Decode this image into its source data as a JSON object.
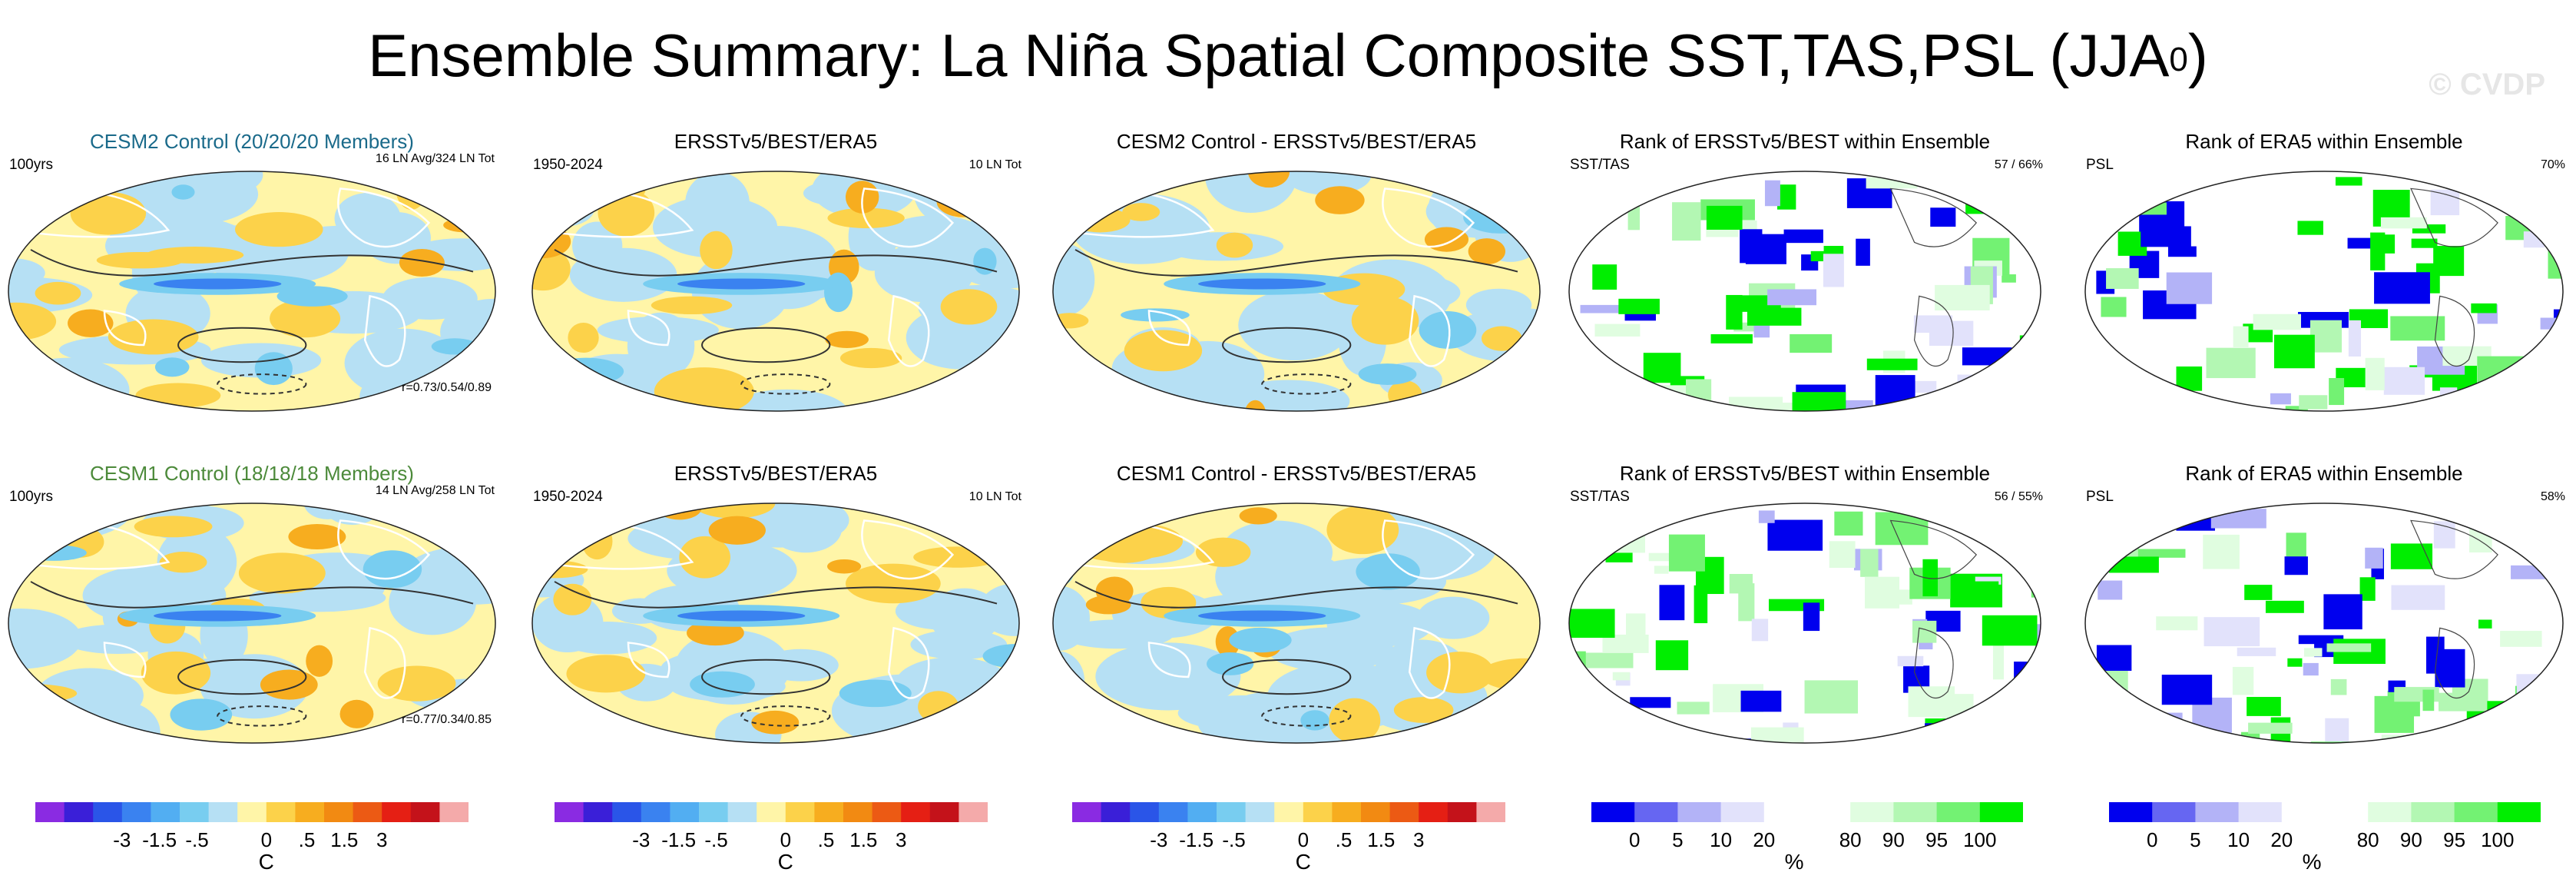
{
  "title": "Ensemble Summary: La Niña Spatial Composite SST,TAS,PSL (JJA",
  "title_sup": "0",
  "title_close": ")",
  "watermark": "© CVDP",
  "rows": [
    {
      "control": {
        "title": "CESM2 Control (20/20/20 Members)",
        "left": "100yrs",
        "right": "16 LN Avg/324 LN Tot",
        "corr": "r=0.73/0.54/0.89"
      },
      "obs": {
        "title": "ERSSTv5/BEST/ERA5",
        "left": "1950-2024",
        "right": "10 LN Tot"
      },
      "diff": {
        "title": "CESM2 Control - ERSSTv5/BEST/ERA5"
      },
      "rank1": {
        "title": "Rank of ERSSTv5/BEST within Ensemble",
        "left": "SST/TAS",
        "right": "57 /  66%"
      },
      "rank2": {
        "title": "Rank of ERA5 within Ensemble",
        "left": "PSL",
        "right": "70%"
      }
    },
    {
      "control": {
        "title": "CESM1 Control (18/18/18 Members)",
        "left": "100yrs",
        "right": "14 LN Avg/258 LN Tot",
        "corr": "r=0.77/0.34/0.85"
      },
      "obs": {
        "title": "ERSSTv5/BEST/ERA5",
        "left": "1950-2024",
        "right": "10 LN Tot"
      },
      "diff": {
        "title": "CESM1 Control - ERSSTv5/BEST/ERA5"
      },
      "rank1": {
        "title": "Rank of ERSSTv5/BEST within Ensemble",
        "left": "SST/TAS",
        "right": "56 /  55%"
      },
      "rank2": {
        "title": "Rank of ERA5 within Ensemble",
        "left": "PSL",
        "right": "58%"
      }
    }
  ],
  "colorbars": {
    "anomaly": {
      "colors": [
        "#8a2be2",
        "#3a1fd8",
        "#2a55e8",
        "#3a82f0",
        "#52aef2",
        "#78cdf0",
        "#b6e0f4",
        "#fff5a8",
        "#fcd24a",
        "#f7ad1f",
        "#f28a12",
        "#ec5a14",
        "#e51f14",
        "#c4121a",
        "#f4aaaa"
      ],
      "labels": [
        "-3",
        "-1.5",
        "-.5",
        "0",
        ".5",
        "1.5",
        "3"
      ],
      "unit": "C"
    },
    "rank": {
      "colors": [
        "#0000ee",
        "#6666f2",
        "#b3b3f7",
        "#e2e2fb",
        "#ffffff",
        "#ffffff",
        "#e0fde0",
        "#b3f7b3",
        "#73f273",
        "#00ee00"
      ],
      "labels": [
        "0",
        "5",
        "10",
        "20",
        "80",
        "90",
        "95",
        "100"
      ],
      "unit": "%"
    }
  },
  "chart_data": [
    {
      "type": "heatmap",
      "title": "CESM2 Control (20/20/20 Members)",
      "variable": "SST/TAS anomaly with PSL contours",
      "units": "C",
      "levels": [
        -3,
        -1.5,
        -0.5,
        0,
        0.5,
        1.5,
        3
      ],
      "summary": "Cold tongue in equatorial Pacific ~ -1.5 C",
      "pattern_correlation": [
        0.73,
        0.54,
        0.89
      ]
    },
    {
      "type": "heatmap",
      "title": "ERSSTv5/BEST/ERA5",
      "variable": "SST/TAS anomaly with PSL contours",
      "units": "C",
      "levels": [
        -3,
        -1.5,
        -0.5,
        0,
        0.5,
        1.5,
        3
      ]
    },
    {
      "type": "heatmap",
      "title": "CESM2 Control - ERSSTv5/BEST/ERA5",
      "variable": "difference",
      "units": "C",
      "levels": [
        -3,
        -1.5,
        -0.5,
        0,
        0.5,
        1.5,
        3
      ]
    },
    {
      "type": "heatmap",
      "title": "Rank of ERSSTv5/BEST within Ensemble",
      "units": "%",
      "levels": [
        0,
        5,
        10,
        20,
        80,
        90,
        95,
        100
      ],
      "summary_values": [
        57,
        66
      ]
    },
    {
      "type": "heatmap",
      "title": "Rank of ERA5 within Ensemble",
      "units": "%",
      "levels": [
        0,
        5,
        10,
        20,
        80,
        90,
        95,
        100
      ],
      "summary_values": [
        70
      ]
    },
    {
      "type": "heatmap",
      "title": "CESM1 Control (18/18/18 Members)",
      "variable": "SST/TAS anomaly with PSL contours",
      "units": "C",
      "levels": [
        -3,
        -1.5,
        -0.5,
        0,
        0.5,
        1.5,
        3
      ],
      "pattern_correlation": [
        0.77,
        0.34,
        0.85
      ]
    },
    {
      "type": "heatmap",
      "title": "ERSSTv5/BEST/ERA5",
      "units": "C",
      "levels": [
        -3,
        -1.5,
        -0.5,
        0,
        0.5,
        1.5,
        3
      ]
    },
    {
      "type": "heatmap",
      "title": "CESM1 Control - ERSSTv5/BEST/ERA5",
      "units": "C",
      "levels": [
        -3,
        -1.5,
        -0.5,
        0,
        0.5,
        1.5,
        3
      ]
    },
    {
      "type": "heatmap",
      "title": "Rank of ERSSTv5/BEST within Ensemble",
      "units": "%",
      "levels": [
        0,
        5,
        10,
        20,
        80,
        90,
        95,
        100
      ],
      "summary_values": [
        56,
        55
      ]
    },
    {
      "type": "heatmap",
      "title": "Rank of ERA5 within Ensemble",
      "units": "%",
      "levels": [
        0,
        5,
        10,
        20,
        80,
        90,
        95,
        100
      ],
      "summary_values": [
        58
      ]
    }
  ]
}
